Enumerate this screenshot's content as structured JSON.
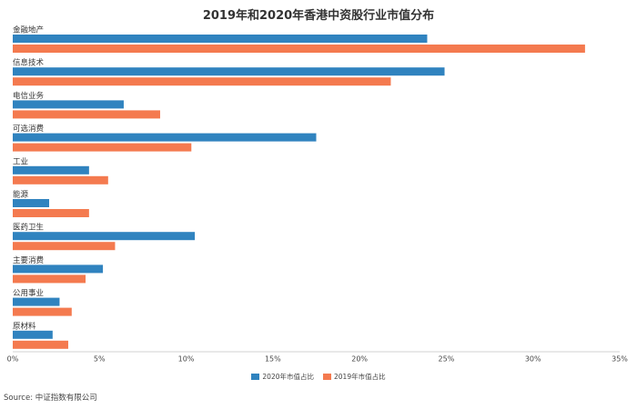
{
  "chart_data": {
    "type": "bar",
    "orientation": "horizontal",
    "title": "2019年和2020年香港中资股行业市值分布",
    "categories": [
      "金融地产",
      "信息技术",
      "电信业务",
      "可选消费",
      "工业",
      "能源",
      "医药卫生",
      "主要消费",
      "公用事业",
      "原材料"
    ],
    "series": [
      {
        "name": "2020年市值占比",
        "color": "#3083BF",
        "values": [
          23.9,
          24.9,
          6.4,
          17.5,
          4.4,
          2.1,
          10.5,
          5.2,
          2.7,
          2.3
        ]
      },
      {
        "name": "2019年市值占比",
        "color": "#F47A4F",
        "values": [
          33.0,
          21.8,
          8.5,
          10.3,
          5.5,
          4.4,
          5.9,
          4.2,
          3.4,
          3.2
        ]
      }
    ],
    "xlim": [
      0,
      35
    ],
    "xticks": [
      "0%",
      "5%",
      "10%",
      "15%",
      "20%",
      "25%",
      "30%",
      "35%"
    ],
    "grid": false,
    "legend_position": "bottom"
  },
  "source": "Source: 中证指数有限公司"
}
